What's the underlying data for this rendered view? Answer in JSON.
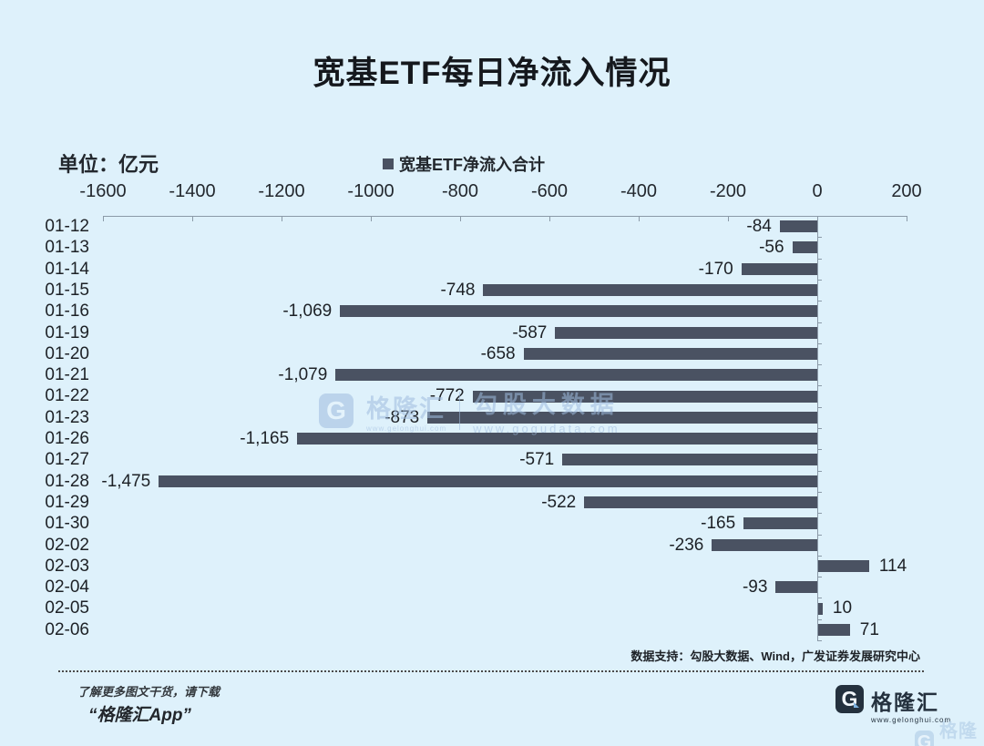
{
  "title": "宽基ETF每日净流入情况",
  "unit_label": "单位：亿元",
  "legend": {
    "label": "宽基ETF净流入合计"
  },
  "chart_data": {
    "type": "bar",
    "orientation": "horizontal",
    "title": "宽基ETF每日净流入情况",
    "unit": "亿元",
    "legend_entries": [
      "宽基ETF净流入合计"
    ],
    "legend_position": "top",
    "categories": [
      "01-12",
      "01-13",
      "01-14",
      "01-15",
      "01-16",
      "01-19",
      "01-20",
      "01-21",
      "01-22",
      "01-23",
      "01-26",
      "01-27",
      "01-28",
      "01-29",
      "01-30",
      "02-02",
      "02-03",
      "02-04",
      "02-05",
      "02-06"
    ],
    "values": [
      -84,
      -56,
      -170,
      -748,
      -1069,
      -587,
      -658,
      -1079,
      -772,
      -873,
      -1165,
      -571,
      -1475,
      -522,
      -165,
      -236,
      114,
      -93,
      10,
      71
    ],
    "value_labels": [
      "-84",
      "-56",
      "-170",
      "-748",
      "-1,069",
      "-587",
      "-658",
      "-1,079",
      "-772",
      "-873",
      "-1,165",
      "-571",
      "-1,475",
      "-522",
      "-165",
      "-236",
      "114",
      "-93",
      "10",
      "71"
    ],
    "x_ticks": [
      -1600,
      -1400,
      -1200,
      -1000,
      -800,
      -600,
      -400,
      -200,
      0,
      200
    ],
    "xlim": [
      -1600,
      200
    ],
    "grid": false
  },
  "watermark": {
    "brand_initial": "G",
    "brand": "格隆汇",
    "brand_url": "www.gelonghui.com",
    "partner": "勾股大数据",
    "partner_url": "www.gogudata.com"
  },
  "footer": {
    "source_text": "数据支持：勾股大数据、Wind，广发证券发展研究中心",
    "promo_line1": "了解更多图文干货，请下载",
    "promo_line2": "“格隆汇App”",
    "logo_initial": "G",
    "logo_text": "格隆汇",
    "logo_url": "www.gelonghui.com",
    "corner_logo_initial": "G",
    "corner_logo_text": "格隆汇"
  },
  "colors": {
    "background": "#def1fb",
    "bar": "#4a5262",
    "axis": "#8b9aa8",
    "text": "#1d2126",
    "watermark": "#9fbcde"
  }
}
